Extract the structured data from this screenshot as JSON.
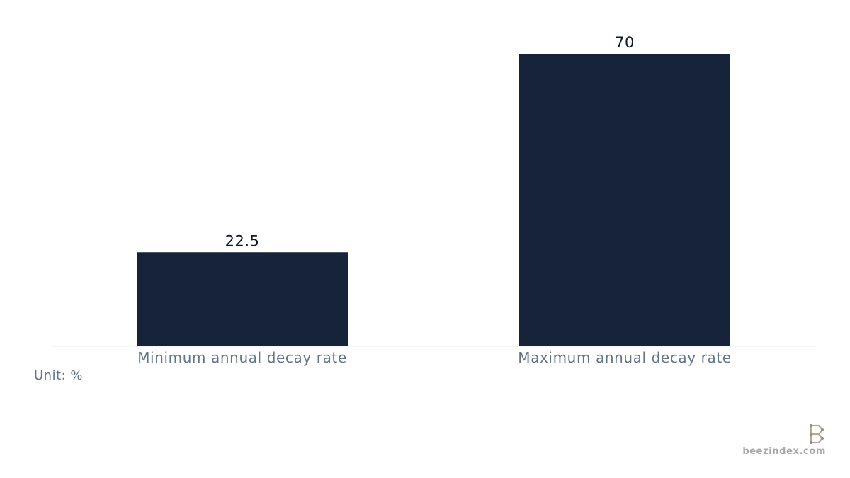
{
  "chart_data": {
    "type": "bar",
    "categories": [
      "Minimum annual decay rate",
      "Maximum annual decay rate"
    ],
    "values": [
      22.5,
      70
    ],
    "data_labels": [
      "22.5",
      "70"
    ],
    "ylim": [
      0,
      70
    ],
    "grid": false,
    "bar_color": "#172339",
    "label_color": "#111827",
    "category_color": "#64748b"
  },
  "unit_label": "Unit: %",
  "brand": {
    "name": "beezindex.com",
    "logo_icon": "beezindex-logo-icon"
  }
}
